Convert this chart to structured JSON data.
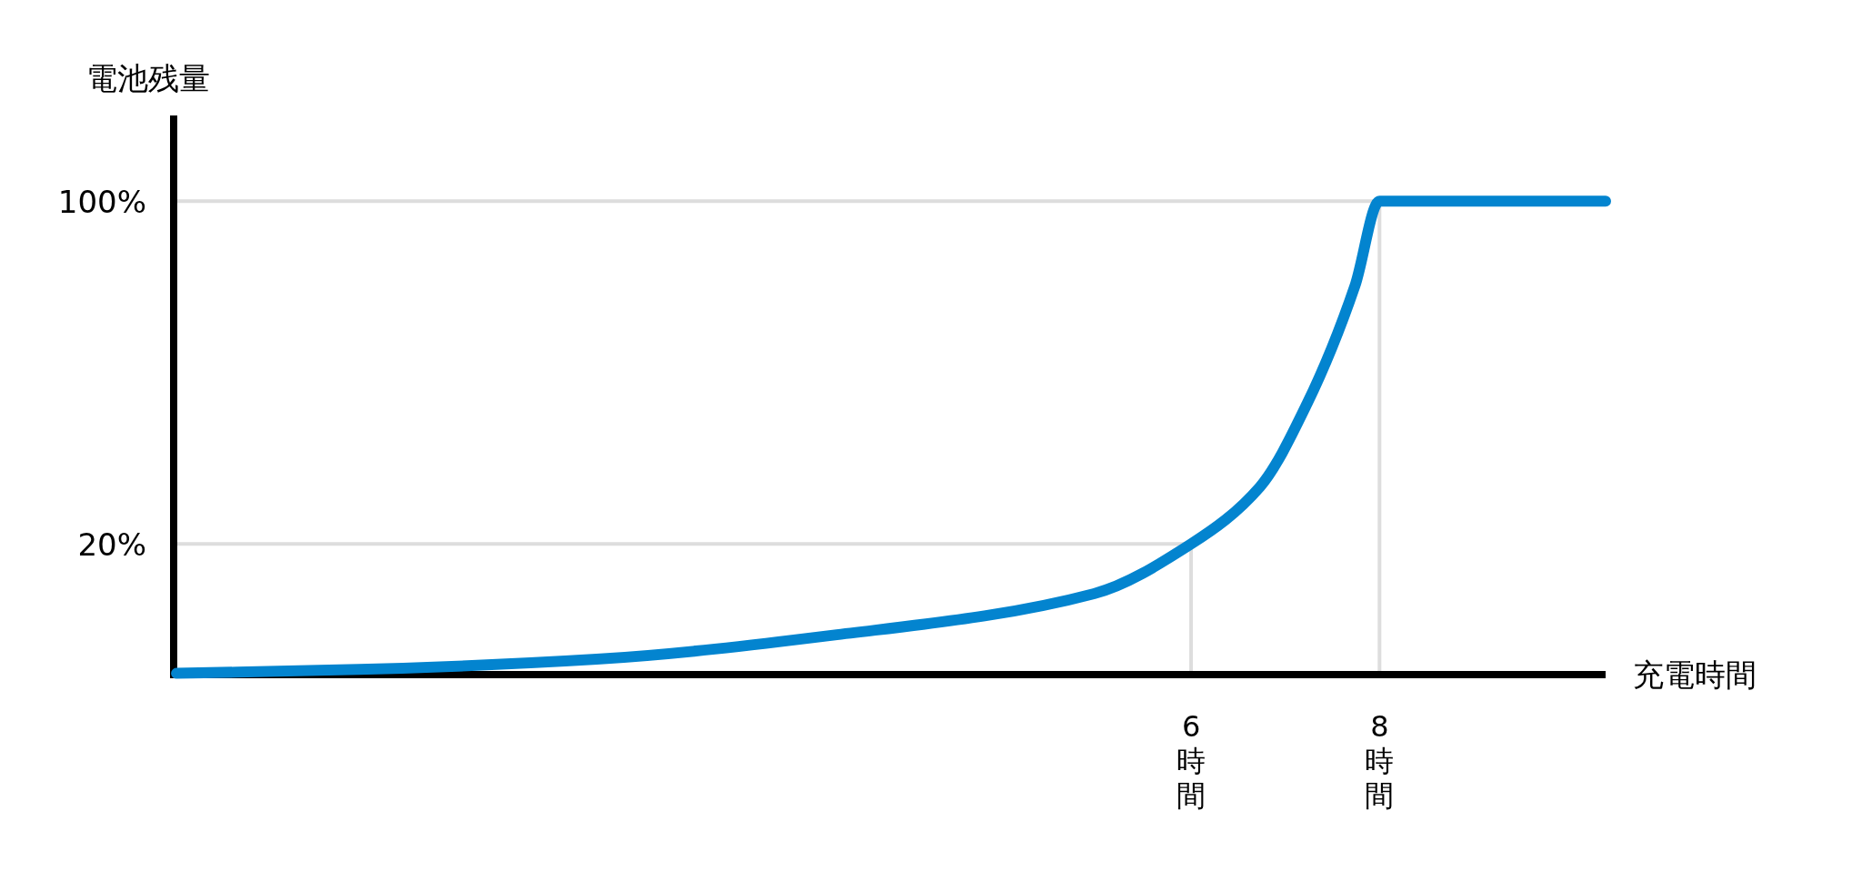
{
  "chart_data": {
    "type": "line",
    "xlabel": "充電時間",
    "ylabel": "電池残量",
    "xlim": [
      -4.8,
      10.4
    ],
    "ylim": [
      -10.5,
      120
    ],
    "xticks": [
      {
        "value": 6,
        "label": "6時間"
      },
      {
        "value": 8,
        "label": "8時間"
      }
    ],
    "yticks": [
      {
        "value": 20,
        "label": "20%"
      },
      {
        "value": 100,
        "label": "100%"
      }
    ],
    "ref_lines": [
      {
        "axis": "y",
        "value": 100,
        "color": "#dddddd"
      },
      {
        "axis": "y",
        "value": 20,
        "color": "#dddddd"
      },
      {
        "axis": "x",
        "value": 6,
        "color": "#dddddd"
      },
      {
        "axis": "x",
        "value": 8,
        "color": "#dddddd"
      }
    ],
    "series": [
      {
        "color": "#0384cf",
        "x": [
          -4.77,
          -2.83,
          -0.31,
          2.2,
          4.97,
          6,
          6.73,
          7.23,
          7.74,
          8,
          10.4
        ],
        "values": [
          -10.2,
          -9.3,
          -6.9,
          -1.3,
          8.4,
          20,
          33.3,
          52.7,
          80.3,
          100,
          100
        ]
      }
    ]
  }
}
